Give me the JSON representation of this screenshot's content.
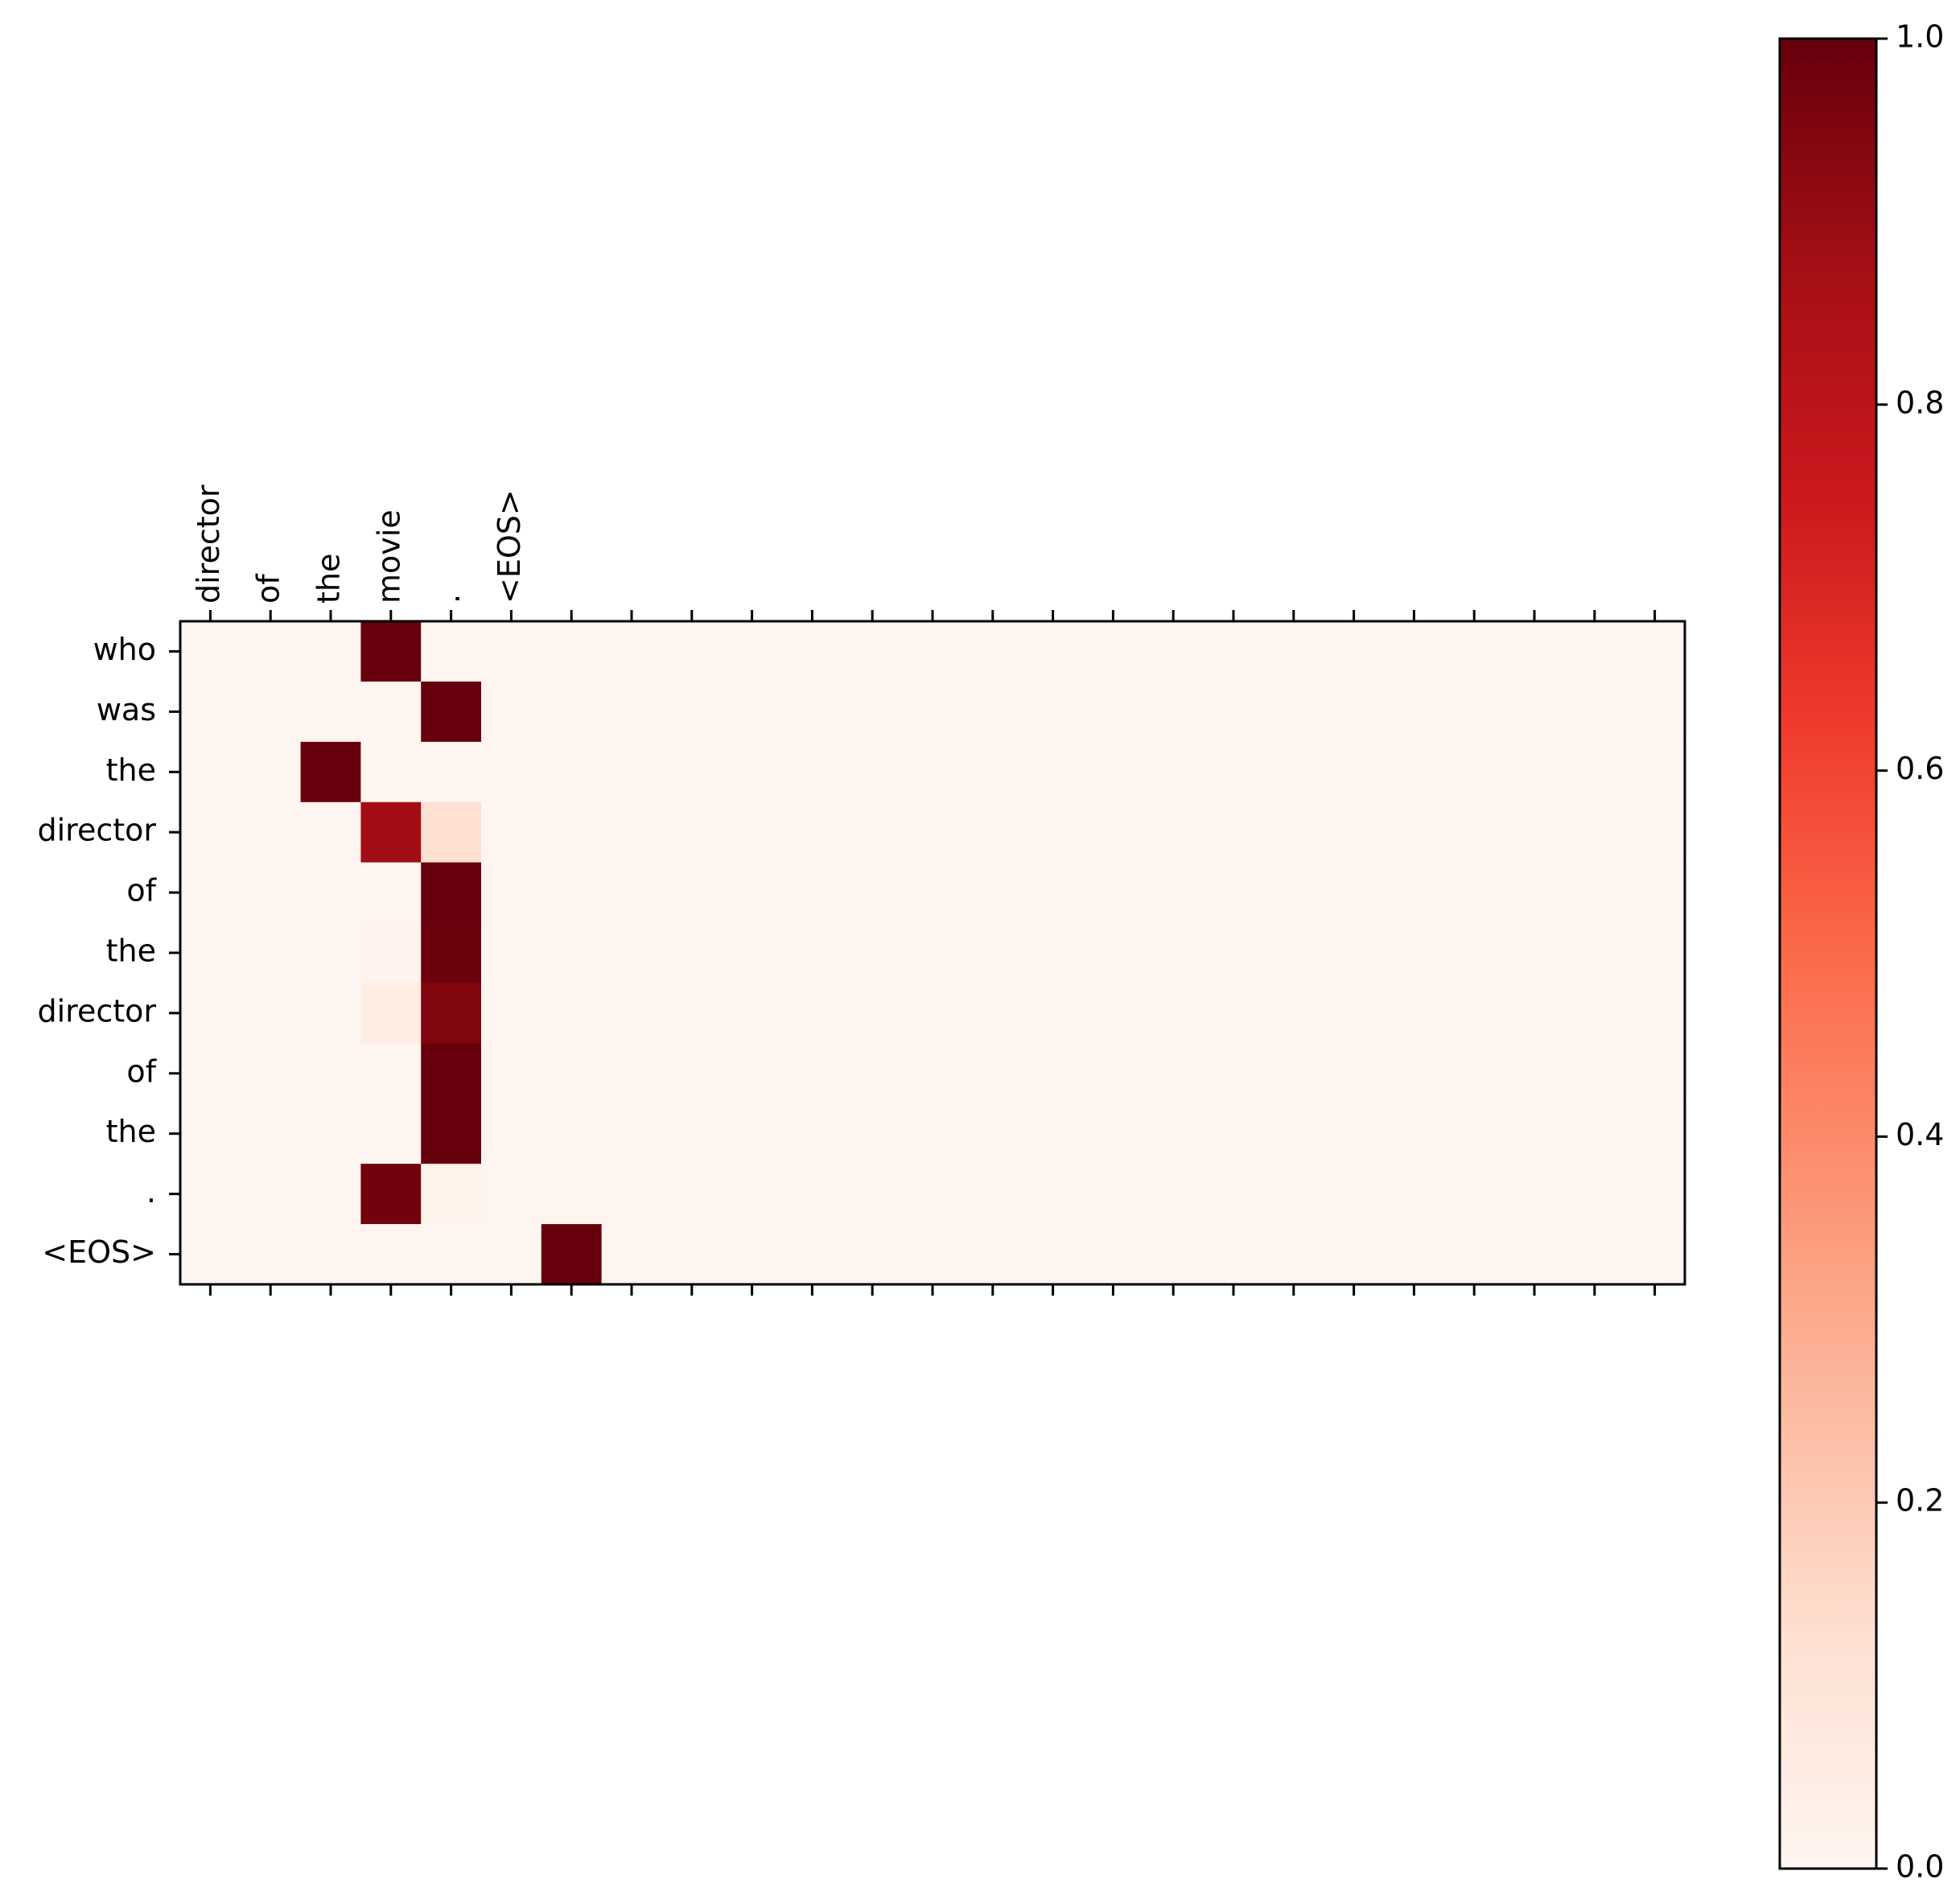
{
  "chart_data": {
    "type": "heatmap",
    "title": "",
    "colormap": "Reds",
    "x_labels": [
      "director",
      "of",
      "the",
      "movie",
      ".",
      "<EOS>"
    ],
    "n_columns": 25,
    "y_labels": [
      "who",
      "was",
      "the",
      "director",
      "of",
      "the",
      "director",
      "of",
      "the",
      ".",
      "<EOS>"
    ],
    "values": [
      [
        0,
        0,
        0,
        1.0,
        0,
        0,
        0,
        0,
        0,
        0,
        0,
        0,
        0,
        0,
        0,
        0,
        0,
        0,
        0,
        0,
        0,
        0,
        0,
        0,
        0
      ],
      [
        0,
        0,
        0,
        0,
        1.0,
        0,
        0,
        0,
        0,
        0,
        0,
        0,
        0,
        0,
        0,
        0,
        0,
        0,
        0,
        0,
        0,
        0,
        0,
        0,
        0
      ],
      [
        0,
        0,
        1.0,
        0,
        0,
        0,
        0,
        0,
        0,
        0,
        0,
        0,
        0,
        0,
        0,
        0,
        0,
        0,
        0,
        0,
        0,
        0,
        0,
        0,
        0
      ],
      [
        0,
        0,
        0,
        0.88,
        0.12,
        0,
        0,
        0,
        0,
        0,
        0,
        0,
        0,
        0,
        0,
        0,
        0,
        0,
        0,
        0,
        0,
        0,
        0,
        0,
        0
      ],
      [
        0,
        0,
        0,
        0,
        1.0,
        0,
        0,
        0,
        0,
        0,
        0,
        0,
        0,
        0,
        0,
        0,
        0,
        0,
        0,
        0,
        0,
        0,
        0,
        0,
        0
      ],
      [
        0,
        0,
        0,
        0.01,
        0.99,
        0,
        0,
        0,
        0,
        0,
        0,
        0,
        0,
        0,
        0,
        0,
        0,
        0,
        0,
        0,
        0,
        0,
        0,
        0,
        0
      ],
      [
        0,
        0,
        0,
        0.05,
        0.95,
        0,
        0,
        0,
        0,
        0,
        0,
        0,
        0,
        0,
        0,
        0,
        0,
        0,
        0,
        0,
        0,
        0,
        0,
        0,
        0
      ],
      [
        0,
        0,
        0,
        0,
        1.0,
        0,
        0,
        0,
        0,
        0,
        0,
        0,
        0,
        0,
        0,
        0,
        0,
        0,
        0,
        0,
        0,
        0,
        0,
        0,
        0
      ],
      [
        0,
        0,
        0,
        0,
        1.0,
        0,
        0,
        0,
        0,
        0,
        0,
        0,
        0,
        0,
        0,
        0,
        0,
        0,
        0,
        0,
        0,
        0,
        0,
        0,
        0
      ],
      [
        0,
        0,
        0,
        0.98,
        0.02,
        0,
        0,
        0,
        0,
        0,
        0,
        0,
        0,
        0,
        0,
        0,
        0,
        0,
        0,
        0,
        0,
        0,
        0,
        0,
        0
      ],
      [
        0,
        0,
        0,
        0,
        0,
        0,
        1.0,
        0,
        0,
        0,
        0,
        0,
        0,
        0,
        0,
        0,
        0,
        0,
        0,
        0,
        0,
        0,
        0,
        0,
        0
      ]
    ],
    "colorbar": {
      "range": [
        0.0,
        1.0
      ],
      "ticks": [
        "0.0",
        "0.2",
        "0.4",
        "0.6",
        "0.8",
        "1.0"
      ]
    }
  }
}
